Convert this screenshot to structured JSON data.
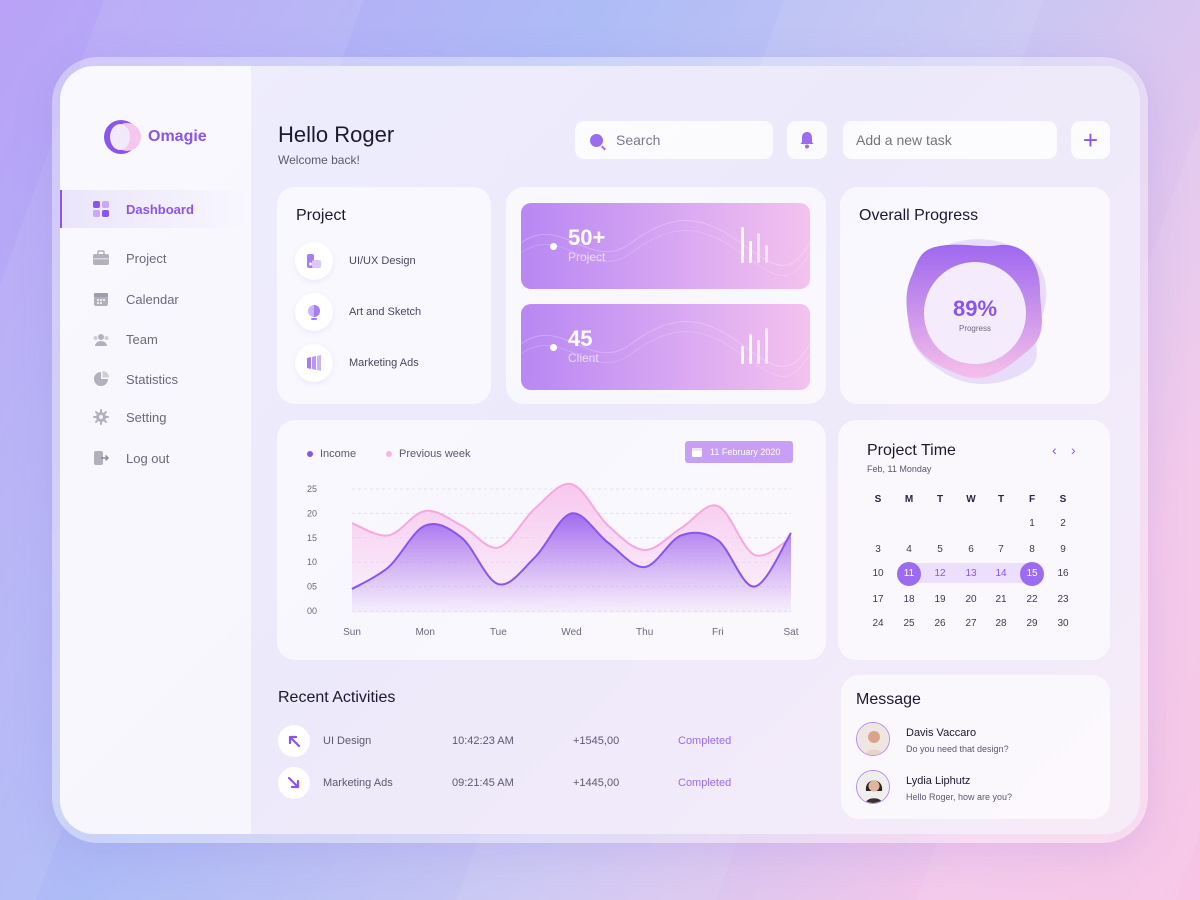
{
  "app": {
    "name": "Omagie"
  },
  "sidebar": {
    "items": [
      {
        "label": "Dashboard",
        "icon": "dashboard-icon",
        "active": true
      },
      {
        "label": "Project",
        "icon": "briefcase-icon"
      },
      {
        "label": "Calendar",
        "icon": "calendar-icon"
      },
      {
        "label": "Team",
        "icon": "team-icon"
      },
      {
        "label": "Statistics",
        "icon": "pie-chart-icon"
      },
      {
        "label": "Setting",
        "icon": "gear-icon"
      },
      {
        "label": "Log out",
        "icon": "logout-icon"
      }
    ]
  },
  "header": {
    "greeting": "Hello Roger",
    "subtitle": "Welcome back!",
    "search_placeholder": "Search",
    "task_placeholder": "Add a new task",
    "add_label": "+"
  },
  "project_card": {
    "title": "Project",
    "items": [
      {
        "label": "UI/UX Design",
        "icon": "design-icon"
      },
      {
        "label": "Art and Sketch",
        "icon": "globe-icon"
      },
      {
        "label": "Marketing Ads",
        "icon": "megaphone-icon"
      }
    ]
  },
  "stats": [
    {
      "value": "50+",
      "label": "Project"
    },
    {
      "value": "45",
      "label": "Client"
    }
  ],
  "progress": {
    "title": "Overall Progress",
    "value": "89%",
    "label": "Progress",
    "percent": 89
  },
  "income_chart": {
    "legend": [
      "Income",
      "Previous week"
    ],
    "date": "11 February 2020",
    "y_ticks": [
      "25",
      "20",
      "15",
      "10",
      "05",
      "00"
    ],
    "x_ticks": [
      "Sun",
      "Mon",
      "Tue",
      "Wed",
      "Thu",
      "Fri",
      "Sat"
    ]
  },
  "chart_data": {
    "type": "area",
    "x": [
      "Sun",
      "Mon",
      "Tue",
      "Wed",
      "Thu",
      "Fri",
      "Sat"
    ],
    "ylim": [
      0,
      25
    ],
    "grid": true,
    "legend_position": "top-left",
    "series": [
      {
        "name": "Income",
        "color": "#8b55ec",
        "x": [
          0,
          0.5,
          1.0,
          1.5,
          2.0,
          2.5,
          3.0,
          3.5,
          4.0,
          4.5,
          5.0,
          5.5,
          6.0
        ],
        "values": [
          4.5,
          9,
          17.5,
          15,
          5.5,
          11,
          20,
          14,
          9,
          15.5,
          14.5,
          5,
          16
        ]
      },
      {
        "name": "Previous week",
        "color": "#f6b7e6",
        "x": [
          0,
          0.5,
          1.0,
          1.5,
          2.0,
          2.5,
          3.0,
          3.5,
          4.0,
          4.5,
          5.0,
          5.5,
          6.0
        ],
        "values": [
          18,
          15.5,
          20.5,
          17.5,
          13,
          21,
          26,
          17.5,
          12.5,
          17,
          21.5,
          11.5,
          15
        ]
      }
    ]
  },
  "calendar": {
    "title": "Project Time",
    "subtitle": "Feb, 11 Monday",
    "prev": "‹",
    "next": "›",
    "weekdays": [
      "S",
      "M",
      "T",
      "W",
      "T",
      "F",
      "S"
    ],
    "weeks": [
      [
        "",
        "",
        "",
        "",
        "",
        "1",
        "2"
      ],
      [
        "3",
        "4",
        "5",
        "6",
        "7",
        "8",
        "9"
      ],
      [
        "10",
        "11",
        "12",
        "13",
        "14",
        "15",
        "16"
      ],
      [
        "17",
        "18",
        "19",
        "20",
        "21",
        "22",
        "23"
      ],
      [
        "24",
        "25",
        "26",
        "27",
        "28",
        "29",
        "30"
      ]
    ],
    "range_start": "11",
    "range_end": "15"
  },
  "activities": {
    "title": "Recent Activities",
    "rows": [
      {
        "name": "UI Design",
        "time": "10:42:23 AM",
        "amount": "+1545,00",
        "status": "Completed",
        "icon": "arrow-up-left-icon"
      },
      {
        "name": "Marketing Ads",
        "time": "09:21:45 AM",
        "amount": "+1445,00",
        "status": "Completed",
        "icon": "arrow-down-right-icon"
      }
    ]
  },
  "messages": {
    "title": "Message",
    "items": [
      {
        "name": "Davis Vaccaro",
        "text": "Do you need that design?"
      },
      {
        "name": "Lydia Liphutz",
        "text": "Hello Roger, how are you?"
      }
    ]
  },
  "colors": {
    "accent": "#8b55ec",
    "accent_light": "#f6b7e6"
  }
}
